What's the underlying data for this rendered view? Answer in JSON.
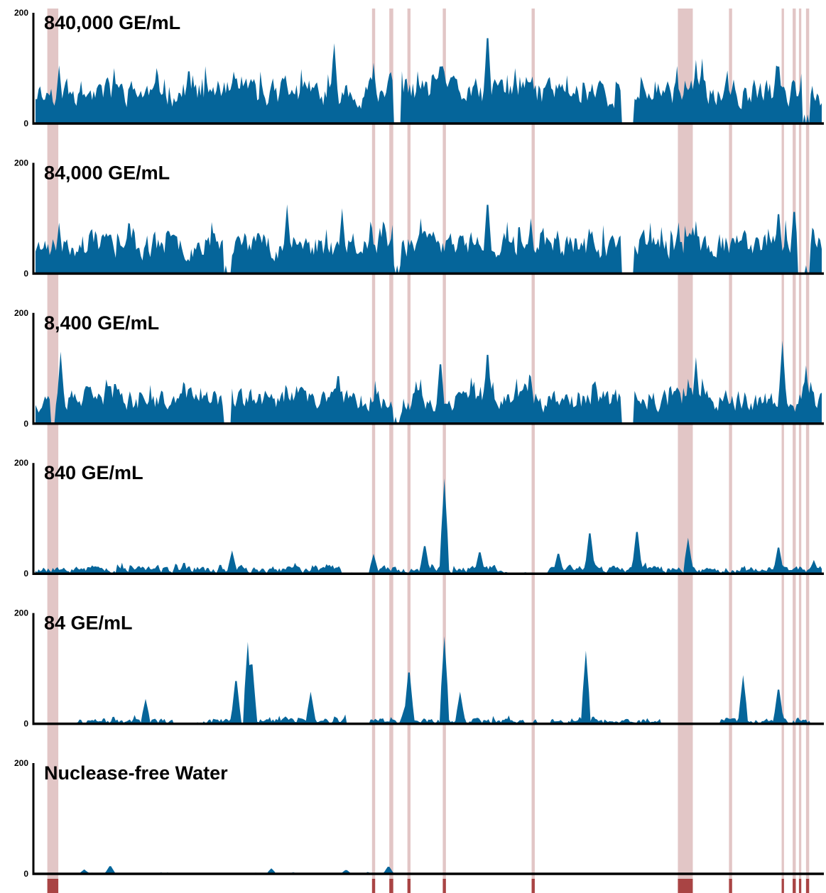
{
  "chart_data": {
    "type": "area",
    "ylim": [
      0,
      200
    ],
    "y_ticks": [
      "0",
      "200"
    ],
    "x_range": [
      0,
      1000
    ],
    "colors": {
      "fill": "#05659a",
      "band": "#e2c6c6",
      "axis": "#000000",
      "marker": "#a94444"
    },
    "highlight_bands": [
      {
        "x0": 15,
        "x1": 29
      },
      {
        "x0": 428,
        "x1": 432
      },
      {
        "x0": 450,
        "x1": 455
      },
      {
        "x0": 473,
        "x1": 477
      },
      {
        "x0": 518,
        "x1": 522
      },
      {
        "x0": 631,
        "x1": 635
      },
      {
        "x0": 817,
        "x1": 836
      },
      {
        "x0": 882,
        "x1": 886
      },
      {
        "x0": 949,
        "x1": 952
      },
      {
        "x0": 963,
        "x1": 967
      },
      {
        "x0": 971,
        "x1": 974
      },
      {
        "x0": 980,
        "x1": 984
      }
    ],
    "bottom_markers": [
      {
        "x0": 15,
        "x1": 29
      },
      {
        "x0": 428,
        "x1": 432
      },
      {
        "x0": 450,
        "x1": 455
      },
      {
        "x0": 473,
        "x1": 477
      },
      {
        "x0": 518,
        "x1": 522
      },
      {
        "x0": 631,
        "x1": 635
      },
      {
        "x0": 817,
        "x1": 836
      },
      {
        "x0": 882,
        "x1": 886
      },
      {
        "x0": 949,
        "x1": 952
      },
      {
        "x0": 963,
        "x1": 967
      },
      {
        "x0": 971,
        "x1": 974
      },
      {
        "x0": 980,
        "x1": 984
      }
    ],
    "series": [
      {
        "name": "840,000 GE/mL",
        "profile": {
          "base": 55,
          "noise": 38,
          "seed": 11,
          "peaks": [
            [
              30,
              105
            ],
            [
              100,
              100
            ],
            [
              195,
              110
            ],
            [
              380,
              145
            ],
            [
              430,
              110
            ],
            [
              515,
              120
            ],
            [
              575,
              180
            ],
            [
              610,
              100
            ],
            [
              840,
              115
            ],
            [
              945,
              120
            ],
            [
              975,
              105
            ]
          ],
          "gaps": [
            [
              455,
              465
            ],
            [
              745,
              760
            ],
            [
              975,
              985
            ]
          ]
        }
      },
      {
        "name": "84,000 GE/mL",
        "profile": {
          "base": 50,
          "noise": 36,
          "seed": 23,
          "peaks": [
            [
              30,
              92
            ],
            [
              95,
              82
            ],
            [
              320,
              125
            ],
            [
              390,
              118
            ],
            [
              490,
              100
            ],
            [
              575,
              145
            ],
            [
              630,
              100
            ],
            [
              840,
              95
            ],
            [
              945,
              125
            ],
            [
              965,
              130
            ]
          ],
          "gaps": [
            [
              455,
              465
            ],
            [
              745,
              760
            ],
            [
              970,
              985
            ],
            [
              240,
              248
            ]
          ]
        }
      },
      {
        "name": "8,400 GE/mL",
        "profile": {
          "base": 42,
          "noise": 30,
          "seed": 37,
          "peaks": [
            [
              32,
              130
            ],
            [
              90,
              80
            ],
            [
              195,
              72
            ],
            [
              385,
              100
            ],
            [
              515,
              125
            ],
            [
              575,
              145
            ],
            [
              630,
              85
            ],
            [
              840,
              120
            ],
            [
              950,
              150
            ],
            [
              980,
              105
            ]
          ],
          "gaps": [
            [
              455,
              465
            ],
            [
              745,
              760
            ],
            [
              240,
              248
            ],
            [
              20,
              24
            ]
          ]
        }
      },
      {
        "name": "840 GE/mL",
        "profile": {
          "base": 8,
          "noise": 10,
          "seed": 53,
          "peaks": [
            [
              250,
              42
            ],
            [
              430,
              36
            ],
            [
              495,
              58
            ],
            [
              520,
              172
            ],
            [
              565,
              45
            ],
            [
              665,
              42
            ],
            [
              705,
              85
            ],
            [
              765,
              88
            ],
            [
              830,
              65
            ],
            [
              945,
              55
            ],
            [
              990,
              25
            ]
          ],
          "gaps": [
            [
              390,
              425
            ],
            [
              600,
              650
            ],
            [
              395,
              400
            ]
          ]
        }
      },
      {
        "name": "84 GE/mL",
        "profile": {
          "base": 5,
          "noise": 8,
          "seed": 71,
          "peaks": [
            [
              140,
              45
            ],
            [
              255,
              90
            ],
            [
              270,
              148
            ],
            [
              275,
              125
            ],
            [
              350,
              58
            ],
            [
              470,
              32
            ],
            [
              475,
              108
            ],
            [
              520,
              158
            ],
            [
              540,
              58
            ],
            [
              700,
              132
            ],
            [
              900,
              88
            ],
            [
              945,
              72
            ]
          ],
          "gaps": [
            [
              0,
              50
            ],
            [
              175,
              205
            ],
            [
              395,
              425
            ],
            [
              640,
              655
            ],
            [
              795,
              870
            ],
            [
              985,
              1000
            ]
          ]
        }
      },
      {
        "name": "Nuclease-free Water",
        "profile": {
          "base": 0.5,
          "noise": 2,
          "seed": 89,
          "peaks": [
            [
              62,
              8
            ],
            [
              95,
              16
            ],
            [
              300,
              10
            ],
            [
              395,
              8
            ],
            [
              449,
              15
            ]
          ],
          "gaps": [
            [
              0,
              55
            ],
            [
              460,
              1000
            ]
          ]
        }
      }
    ]
  }
}
